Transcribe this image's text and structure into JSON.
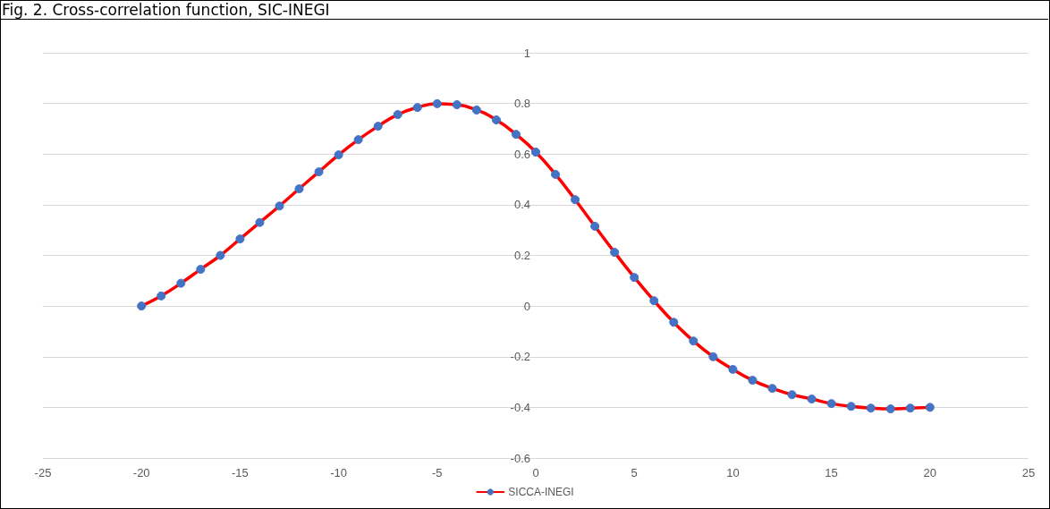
{
  "chart_data": {
    "type": "line",
    "title": "Fig. 2. Cross-correlation function, SIC-INEGI",
    "x": [
      -20,
      -19,
      -18,
      -17,
      -16,
      -15,
      -14,
      -13,
      -12,
      -11,
      -10,
      -9,
      -8,
      -7,
      -6,
      -5,
      -4,
      -3,
      -2,
      -1,
      0,
      1,
      2,
      3,
      4,
      5,
      6,
      7,
      8,
      9,
      10,
      11,
      12,
      13,
      14,
      15,
      16,
      17,
      18,
      19,
      20
    ],
    "series": [
      {
        "name": "SICCA-INEGI",
        "color": "#ff0000",
        "values": [
          0.0,
          0.04,
          0.09,
          0.145,
          0.2,
          0.265,
          0.33,
          0.395,
          0.463,
          0.53,
          0.597,
          0.657,
          0.71,
          0.756,
          0.784,
          0.799,
          0.795,
          0.774,
          0.735,
          0.678,
          0.608,
          0.52,
          0.42,
          0.315,
          0.212,
          0.113,
          0.021,
          -0.064,
          -0.138,
          -0.2,
          -0.25,
          -0.293,
          -0.325,
          -0.35,
          -0.367,
          -0.385,
          -0.396,
          -0.403,
          -0.406,
          -0.403,
          -0.4
        ]
      }
    ],
    "xlim": [
      -25,
      25
    ],
    "xticks": [
      -25,
      -20,
      -15,
      -10,
      -5,
      0,
      5,
      10,
      15,
      20,
      25
    ],
    "ylim": [
      -0.6,
      1
    ],
    "yticks": [
      -0.6,
      -0.4,
      -0.2,
      0,
      0.2,
      0.4,
      0.6,
      0.8,
      1
    ],
    "grid": "y",
    "legend": "bottom",
    "marker": "circle",
    "line_style": "solid"
  }
}
